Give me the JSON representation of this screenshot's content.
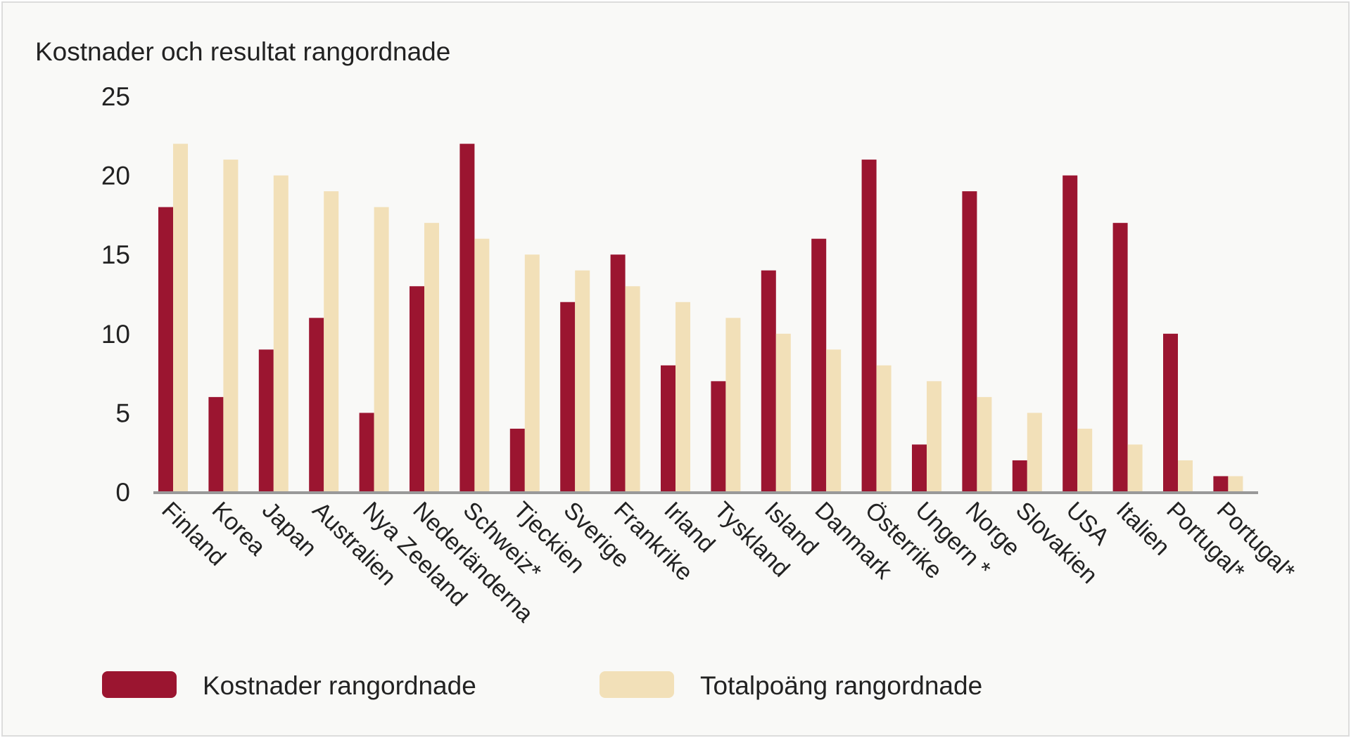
{
  "chart_data": {
    "type": "bar",
    "title": "Kostnader och resultat rangordnade",
    "xlabel": "",
    "ylabel": "",
    "ylim": [
      0,
      25
    ],
    "yticks": [
      0,
      5,
      10,
      15,
      20,
      25
    ],
    "grid": false,
    "legend_position": "bottom",
    "categories": [
      "Finland",
      "Korea",
      "Japan",
      "Australien",
      "Nya Zeeland",
      "Nederländerna",
      "Schweiz*",
      "Tjeckien",
      "Sverige",
      "Frankrike",
      "Irland",
      "Tyskland",
      "Island",
      "Danmark",
      "Österrike",
      "Ungern *",
      "Norge",
      "Slovakien",
      "USA",
      "Italien",
      "Portugal*",
      "Portugal*"
    ],
    "series": [
      {
        "name": "Kostnader rangordnade",
        "color": "#9b1530",
        "values": [
          18,
          6,
          9,
          11,
          5,
          13,
          22,
          4,
          12,
          15,
          8,
          7,
          14,
          16,
          21,
          3,
          19,
          2,
          20,
          17,
          10,
          1
        ]
      },
      {
        "name": "Totalpoäng rangordnade",
        "color": "#f2e0b8",
        "values": [
          22,
          21,
          20,
          19,
          18,
          17,
          16,
          15,
          14,
          13,
          12,
          11,
          10,
          9,
          8,
          7,
          6,
          5,
          4,
          3,
          2,
          1
        ]
      }
    ]
  }
}
